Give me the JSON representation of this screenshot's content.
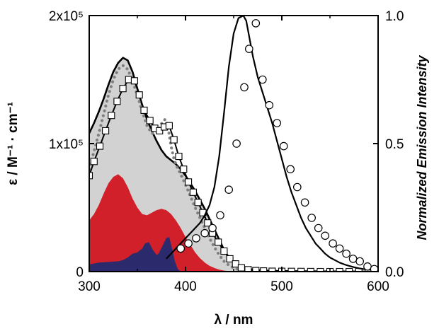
{
  "chart_data": {
    "type": "line",
    "x_axis": {
      "label": "λ / nm",
      "range": [
        300,
        600
      ],
      "ticks": [
        300,
        400,
        500,
        600
      ],
      "tick_labels": [
        "300",
        "400",
        "500",
        "600"
      ]
    },
    "y_axis_left": {
      "label": "ε / M⁻¹ · cm⁻¹",
      "range": [
        0,
        200000
      ],
      "ticks": [
        0,
        100000,
        200000
      ],
      "tick_labels": [
        "0",
        "1x10⁵",
        "2x10⁵"
      ]
    },
    "y_axis_right": {
      "label": "Normalized Emission Intensity",
      "range": [
        0,
        1.0
      ],
      "ticks": [
        0,
        0.5,
        1.0
      ],
      "tick_labels": [
        "0.0",
        "0.5",
        "1.0"
      ]
    },
    "grid": false,
    "series": [
      {
        "kind": "area-outline",
        "axis": "left",
        "fill": "#d2d2d2",
        "stroke": "#000000",
        "x": [
          300,
          305,
          310,
          315,
          320,
          325,
          330,
          335,
          340,
          345,
          350,
          355,
          360,
          365,
          370,
          375,
          380,
          385,
          390,
          395,
          400,
          405,
          410,
          415,
          420,
          425,
          430,
          435,
          440,
          445,
          450,
          455,
          460,
          470,
          480,
          500,
          520,
          550,
          600
        ],
        "y": [
          108000,
          116000,
          125000,
          135000,
          146000,
          156000,
          163000,
          167000,
          165000,
          156000,
          143000,
          130000,
          119000,
          110000,
          102000,
          95000,
          90000,
          87000,
          84000,
          80000,
          75000,
          69000,
          63000,
          56000,
          49000,
          41000,
          33000,
          25000,
          17000,
          11000,
          7000,
          4500,
          3000,
          1500,
          800,
          400,
          200,
          100,
          0
        ]
      },
      {
        "kind": "area",
        "axis": "left",
        "fill": "#d2202a",
        "x": [
          300,
          305,
          310,
          315,
          320,
          325,
          330,
          335,
          340,
          345,
          350,
          355,
          360,
          365,
          370,
          375,
          380,
          385,
          390,
          395,
          400,
          405,
          410,
          415,
          420,
          425,
          430,
          435,
          440,
          445,
          450,
          455
        ],
        "y": [
          40000,
          45000,
          52000,
          61000,
          69000,
          74000,
          76000,
          73000,
          66000,
          57000,
          50000,
          45000,
          44000,
          46000,
          48000,
          49000,
          48000,
          45000,
          40000,
          34000,
          27000,
          21000,
          15000,
          10500,
          7000,
          4500,
          2800,
          1500,
          800,
          400,
          100,
          0
        ]
      },
      {
        "kind": "area",
        "axis": "left",
        "fill": "#2b2a6d",
        "x": [
          300,
          310,
          320,
          330,
          335,
          340,
          345,
          350,
          355,
          358,
          362,
          366,
          370,
          372,
          376,
          380,
          383,
          386,
          389,
          392,
          395
        ],
        "y": [
          5500,
          7000,
          7500,
          8000,
          9000,
          11000,
          14000,
          15000,
          18000,
          22000,
          23000,
          17000,
          13000,
          14000,
          20000,
          26000,
          27000,
          18000,
          8000,
          2000,
          0
        ]
      },
      {
        "kind": "dotted",
        "axis": "left",
        "stroke": "#808080",
        "x": [
          300,
          305,
          310,
          315,
          320,
          325,
          330,
          335,
          340,
          345,
          350,
          355,
          360,
          365,
          370,
          373,
          376,
          379,
          382,
          385,
          388,
          391,
          395,
          400,
          405,
          410,
          415,
          420,
          425,
          430,
          435,
          440,
          445,
          450,
          455,
          460,
          465,
          470
        ],
        "y": [
          80000,
          94000,
          108000,
          123000,
          138000,
          150000,
          158000,
          161000,
          158000,
          149000,
          138000,
          125000,
          114000,
          108000,
          108000,
          112000,
          117000,
          119000,
          112000,
          98000,
          88000,
          82000,
          76000,
          68000,
          59000,
          50000,
          42000,
          34000,
          26000,
          19000,
          13000,
          8000,
          5000,
          3000,
          1500,
          700,
          300,
          0
        ]
      },
      {
        "kind": "line-square",
        "axis": "left",
        "stroke": "#000000",
        "x": [
          300,
          305,
          311,
          317,
          323,
          329,
          335,
          341,
          347,
          352,
          357,
          363,
          368,
          373,
          378,
          383,
          388,
          393,
          398,
          403,
          408,
          413,
          418,
          423,
          428,
          434,
          440,
          446,
          452,
          458,
          465,
          473,
          481,
          490,
          500,
          510,
          520,
          530,
          540,
          550,
          560,
          570,
          580,
          590,
          600
        ],
        "y": [
          75000,
          86000,
          98000,
          110000,
          122000,
          133000,
          143000,
          150000,
          149000,
          138000,
          126000,
          118000,
          112000,
          110000,
          113000,
          114000,
          103000,
          90000,
          80000,
          70000,
          62000,
          54000,
          46000,
          38000,
          30000,
          23000,
          16000,
          10000,
          6000,
          3000,
          1500,
          800,
          500,
          300,
          200,
          150,
          100,
          50,
          0,
          0,
          0,
          0,
          0,
          0,
          0
        ]
      },
      {
        "kind": "line-circle",
        "axis": "right",
        "stroke": "#000000",
        "x": [
          380,
          385,
          390,
          395,
          400,
          405,
          410,
          415,
          420,
          425,
          430,
          435,
          440,
          445,
          450,
          455,
          460,
          463,
          466,
          470,
          475,
          480,
          485,
          490,
          495,
          500,
          505,
          510,
          515,
          520,
          525,
          530,
          535,
          540,
          545,
          550,
          555,
          560,
          565,
          570,
          575,
          580,
          585,
          590,
          595,
          600
        ],
        "y": [
          0.05,
          0.07,
          0.09,
          0.11,
          0.13,
          0.15,
          0.17,
          0.19,
          0.22,
          0.26,
          0.33,
          0.45,
          0.62,
          0.8,
          0.93,
          0.99,
          1.0,
          0.98,
          0.92,
          0.84,
          0.76,
          0.7,
          0.64,
          0.58,
          0.51,
          0.44,
          0.37,
          0.31,
          0.26,
          0.21,
          0.17,
          0.14,
          0.11,
          0.09,
          0.07,
          0.055,
          0.045,
          0.035,
          0.028,
          0.022,
          0.017,
          0.013,
          0.01,
          0.008,
          0.006,
          0.005
        ],
        "markers_x": [
          395,
          403,
          411,
          420,
          428,
          436,
          445,
          453,
          461,
          466,
          473,
          480,
          487,
          495,
          502,
          509,
          516,
          524,
          531,
          538,
          545,
          553,
          560,
          567,
          574,
          581,
          589,
          596
        ],
        "markers_y": [
          0.09,
          0.11,
          0.13,
          0.15,
          0.17,
          0.22,
          0.32,
          0.5,
          0.72,
          0.87,
          0.97,
          0.75,
          0.65,
          0.58,
          0.49,
          0.4,
          0.33,
          0.27,
          0.21,
          0.17,
          0.14,
          0.11,
          0.09,
          0.07,
          0.05,
          0.04,
          0.02,
          0.01
        ]
      }
    ]
  }
}
